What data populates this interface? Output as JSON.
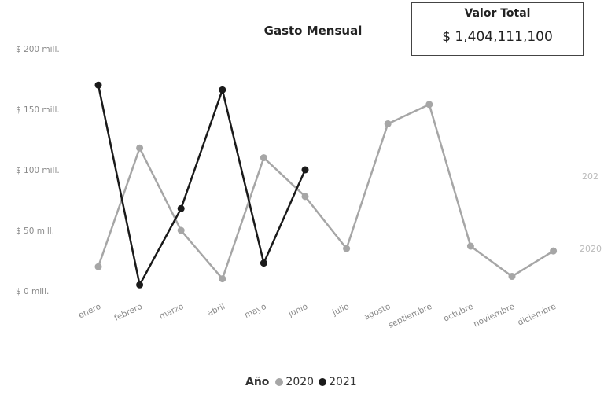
{
  "kpi": {
    "title": "Valor Total",
    "value": "$ 1,404,111,100"
  },
  "legend": {
    "title": "Año"
  },
  "right_labels": [
    "202",
    "2020"
  ],
  "chart_data": {
    "type": "line",
    "title": "Gasto Mensual",
    "xlabel": "",
    "ylabel": "",
    "categories": [
      "enero",
      "febrero",
      "marzo",
      "abril",
      "mayo",
      "junio",
      "julio",
      "agosto",
      "septiembre",
      "octubre",
      "noviembre",
      "diciembre"
    ],
    "yticks": [
      {
        "value": 0,
        "label": "$ 0 mill."
      },
      {
        "value": 50,
        "label": "$ 50 mill."
      },
      {
        "value": 100,
        "label": "$ 100 mill."
      },
      {
        "value": 150,
        "label": "$ 150 mill."
      },
      {
        "value": 200,
        "label": "$ 200 mill."
      }
    ],
    "ylim": [
      0,
      200
    ],
    "grid": false,
    "legend_position": "bottom",
    "series": [
      {
        "name": "2020",
        "color": "#a6a6a6",
        "values": [
          20,
          118,
          50,
          10,
          110,
          78,
          35,
          138,
          154,
          37,
          12,
          33
        ]
      },
      {
        "name": "2021",
        "color": "#1a1a1a",
        "values": [
          170,
          5,
          68,
          166,
          23,
          100,
          null,
          null,
          null,
          null,
          null,
          null
        ]
      }
    ]
  }
}
